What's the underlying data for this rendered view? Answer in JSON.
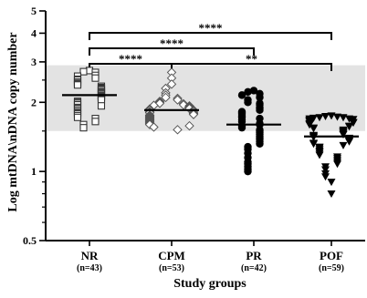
{
  "chart_data": {
    "type": "scatter",
    "xlabel": "Study groups",
    "ylabel": "Log mtDNA\\nDNA copy number",
    "y_scale": "log",
    "ylim": [
      0.5,
      5
    ],
    "y_ticks": [
      {
        "value": 0.5,
        "label": "0.5"
      },
      {
        "value": 1,
        "label": "1"
      },
      {
        "value": 2,
        "label": "2"
      },
      {
        "value": 3,
        "label": "3"
      },
      {
        "value": 4,
        "label": "4"
      },
      {
        "value": 5,
        "label": "5"
      }
    ],
    "reference_band": [
      1.5,
      2.9
    ],
    "groups": [
      {
        "name": "NR",
        "n_label": "(n=43)",
        "marker": "open-square",
        "median": 2.15,
        "values": [
          2.75,
          2.72,
          2.7,
          2.62,
          2.6,
          2.55,
          2.52,
          2.5,
          2.45,
          2.42,
          2.4,
          2.38,
          2.35,
          2.32,
          2.3,
          2.28,
          2.25,
          2.22,
          2.2,
          2.18,
          2.15,
          2.14,
          2.12,
          2.1,
          2.08,
          2.05,
          2.02,
          2.0,
          1.98,
          1.95,
          1.93,
          1.9,
          1.88,
          1.85,
          1.82,
          1.8,
          1.78,
          1.75,
          1.72,
          1.7,
          1.65,
          1.6,
          1.55
        ]
      },
      {
        "name": "CPM",
        "n_label": "(n=53)",
        "marker": "open-diamond",
        "median": 1.85,
        "values": [
          2.7,
          2.55,
          2.4,
          2.3,
          2.2,
          2.15,
          2.1,
          2.08,
          2.05,
          2.02,
          2.0,
          1.98,
          1.97,
          1.95,
          1.94,
          1.93,
          1.92,
          1.9,
          1.89,
          1.88,
          1.87,
          1.86,
          1.85,
          1.85,
          1.84,
          1.83,
          1.82,
          1.81,
          1.8,
          1.8,
          1.79,
          1.78,
          1.77,
          1.76,
          1.75,
          1.74,
          1.73,
          1.72,
          1.71,
          1.7,
          1.69,
          1.68,
          1.67,
          1.66,
          1.65,
          1.64,
          1.63,
          1.62,
          1.61,
          1.6,
          1.58,
          1.56,
          1.52
        ]
      },
      {
        "name": "PR",
        "n_label": "(n=42)",
        "marker": "filled-circle",
        "median": 1.6,
        "values": [
          2.25,
          2.22,
          2.18,
          2.15,
          2.1,
          2.05,
          2.0,
          1.98,
          1.95,
          1.9,
          1.88,
          1.85,
          1.82,
          1.8,
          1.78,
          1.75,
          1.72,
          1.7,
          1.68,
          1.65,
          1.62,
          1.6,
          1.58,
          1.55,
          1.52,
          1.5,
          1.48,
          1.45,
          1.42,
          1.4,
          1.38,
          1.35,
          1.32,
          1.28,
          1.25,
          1.2,
          1.15,
          1.1,
          1.08,
          1.05,
          1.02,
          1.0
        ]
      },
      {
        "name": "POF",
        "n_label": "(n=59)",
        "marker": "filled-triangle-down",
        "median": 1.42,
        "values": [
          1.75,
          1.74,
          1.73,
          1.72,
          1.72,
          1.71,
          1.7,
          1.7,
          1.69,
          1.68,
          1.67,
          1.66,
          1.65,
          1.64,
          1.63,
          1.62,
          1.61,
          1.6,
          1.58,
          1.57,
          1.55,
          1.54,
          1.52,
          1.5,
          1.49,
          1.48,
          1.46,
          1.45,
          1.44,
          1.43,
          1.42,
          1.41,
          1.4,
          1.39,
          1.38,
          1.37,
          1.36,
          1.35,
          1.33,
          1.32,
          1.3,
          1.28,
          1.27,
          1.25,
          1.23,
          1.22,
          1.2,
          1.18,
          1.16,
          1.14,
          1.12,
          1.1,
          1.08,
          1.05,
          1.02,
          0.98,
          0.95,
          0.9,
          0.8
        ]
      }
    ],
    "significance": [
      {
        "from": "NR",
        "to": "POF",
        "label": "****"
      },
      {
        "from": "NR",
        "to": "PR",
        "label": "****"
      },
      {
        "from": "NR",
        "to": "CPM",
        "label": "****"
      },
      {
        "from": "CPM",
        "to": "POF",
        "label": "**"
      }
    ]
  }
}
